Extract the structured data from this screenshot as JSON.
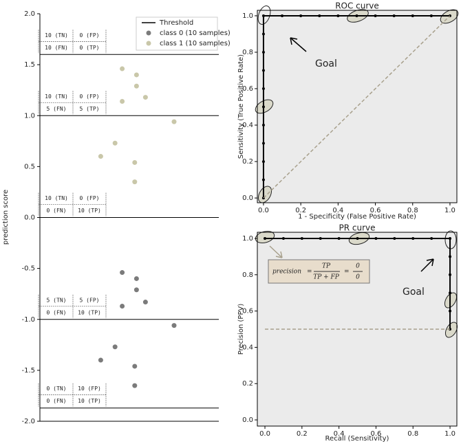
{
  "chart_data": [
    {
      "type": "scatter",
      "ylabel": "prediction score",
      "ylim": [
        -2,
        2
      ],
      "yticks": [
        {
          "value": 2,
          "label": "2.0"
        },
        1.5,
        {
          "value": 1,
          "label": "1.0"
        },
        0.5,
        {
          "value": 0,
          "label": "0.0"
        },
        -0.5,
        {
          "value": -1,
          "label": "-1.0"
        },
        -1.5,
        {
          "value": -2,
          "label": "-2.0"
        }
      ],
      "xlim": [
        0,
        100
      ],
      "legend": "upper right",
      "series": [
        {
          "name": "class 0 (10 samples)",
          "color": "#7b7b7b",
          "x": [
            46,
            54,
            54,
            59,
            46,
            75,
            42,
            34,
            53,
            53
          ],
          "values": [
            -0.54,
            -0.6,
            -0.71,
            -0.83,
            -0.87,
            -1.06,
            -1.27,
            -1.4,
            -1.46,
            -1.65
          ]
        },
        {
          "name": "class 1 (10 samples)",
          "color": "#c9c7a9",
          "x": [
            46,
            54,
            54,
            59,
            46,
            75,
            42,
            34,
            53,
            53
          ],
          "values": [
            1.46,
            1.4,
            1.29,
            1.18,
            1.14,
            0.94,
            0.73,
            0.6,
            0.54,
            0.35
          ]
        }
      ],
      "thresholds": {
        "name": "Threshold",
        "color": "#000000",
        "values": [
          1.6,
          1.0,
          0.0,
          -1.0,
          -1.87
        ],
        "tables": [
          [
            [
              "10 (TN)",
              "0 (FP)"
            ],
            [
              "10 (FN)",
              "0 (TP)"
            ]
          ],
          [
            [
              "10 (TN)",
              "0 (FP)"
            ],
            [
              "5 (FN)",
              "5 (TP)"
            ]
          ],
          [
            [
              "10 (TN)",
              "0 (FP)"
            ],
            [
              "0 (FN)",
              "10 (TP)"
            ]
          ],
          [
            [
              "5 (TN)",
              "5 (FP)"
            ],
            [
              "0 (FN)",
              "10 (TP)"
            ]
          ],
          [
            [
              "0 (TN)",
              "10 (FP)"
            ],
            [
              "0 (FN)",
              "10 (TP)"
            ]
          ]
        ]
      }
    },
    {
      "type": "line",
      "title": "ROC curve",
      "xlabel": "1 - Specificity (False Positive Rate)",
      "ylabel": "Sensitivity (True Positive Rate)",
      "xlim": [
        -0.033,
        1.037
      ],
      "ylim": [
        -0.026,
        1.03
      ],
      "xticks": [
        {
          "value": 0,
          "label": "0.0"
        },
        0.2,
        0.4,
        0.6,
        0.8,
        {
          "value": 1,
          "label": "1.0"
        }
      ],
      "yticks": [
        {
          "value": 0,
          "label": "0.0"
        },
        0.2,
        0.4,
        0.6,
        0.8,
        {
          "value": 1,
          "label": "1.0"
        }
      ],
      "annotation": "Goal",
      "series": [
        {
          "color": "#000000",
          "x": [
            0,
            0,
            0,
            0,
            0,
            0,
            0,
            0,
            0,
            0,
            0,
            0.1,
            0.2,
            0.3,
            0.4,
            0.5,
            0.6,
            0.7,
            0.8,
            0.9,
            1.0
          ],
          "values": [
            0,
            0.1,
            0.2,
            0.3,
            0.4,
            0.5,
            0.6,
            0.7,
            0.8,
            0.9,
            1.0,
            1.0,
            1.0,
            1.0,
            1.0,
            1.0,
            1.0,
            1.0,
            1.0,
            1.0,
            1.0
          ]
        },
        {
          "color": "#a8a08c",
          "dashed": true,
          "x": [
            0,
            1
          ],
          "values": [
            0,
            1
          ]
        }
      ]
    },
    {
      "type": "line",
      "title": "PR curve",
      "xlabel": "Recall (Sensitivity)",
      "ylabel": "Precision (PPV)",
      "xlim": [
        -0.041,
        1.037
      ],
      "ylim": [
        -0.034,
        1.034
      ],
      "xticks": [
        {
          "value": 0,
          "label": "0.0"
        },
        0.2,
        0.4,
        0.6,
        0.8,
        {
          "value": 1,
          "label": "1.0"
        }
      ],
      "yticks": [
        {
          "value": 0,
          "label": "0.0"
        },
        0.2,
        0.4,
        0.6,
        0.8,
        {
          "value": 1,
          "label": "1.0"
        }
      ],
      "annotation": "Goal",
      "formula": {
        "lhs": "precision",
        "num": "TP",
        "den": "TP + FP",
        "num2": "0",
        "den2": "0"
      },
      "series": [
        {
          "color": "#000000",
          "x": [
            0,
            0.1,
            0.2,
            0.3,
            0.4,
            0.5,
            0.6,
            0.7,
            0.8,
            0.9,
            1.0,
            1.0,
            1.0,
            1.0,
            1.0,
            1.0
          ],
          "values": [
            1.0,
            1.0,
            1.0,
            1.0,
            1.0,
            1.0,
            1.0,
            1.0,
            1.0,
            1.0,
            1.0,
            0.9,
            0.8,
            0.7,
            0.6,
            0.5
          ]
        },
        {
          "color": "#a8a08c",
          "dashed": true,
          "x": [
            0,
            1
          ],
          "values": [
            0.5,
            0.5
          ]
        }
      ]
    }
  ]
}
